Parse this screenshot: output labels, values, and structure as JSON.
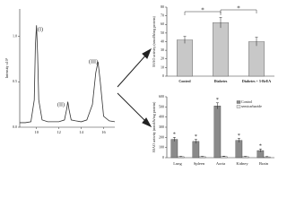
{
  "chart_data": [
    {
      "type": "line",
      "y_label": "Intensity x10⁵",
      "color": "#333333",
      "x": [
        8.5,
        9,
        9.5,
        9.8,
        9.9,
        10,
        10.1,
        10.2,
        10.5,
        11,
        11.5,
        12,
        12.5,
        12.7,
        12.8,
        12.9,
        13.1,
        13.5,
        14,
        14.5,
        15,
        15.3,
        15.5,
        15.7,
        16,
        16.5,
        17
      ],
      "values": [
        0.05,
        0.05,
        0.06,
        0.3,
        0.9,
        1.12,
        0.8,
        0.3,
        0.08,
        0.06,
        0.06,
        0.06,
        0.08,
        0.2,
        0.28,
        0.2,
        0.08,
        0.07,
        0.06,
        0.08,
        0.25,
        0.6,
        0.72,
        0.5,
        0.12,
        0.07,
        0.06
      ],
      "annotations": [
        "(I)",
        "(II)",
        "(III)"
      ],
      "xlim": [
        8.5,
        17
      ],
      "xticks": [
        10,
        12,
        14,
        16
      ],
      "ylim": [
        0,
        1.3
      ],
      "yticks": [
        {
          "value": 0,
          "label": "0.0"
        },
        {
          "value": 0.5,
          "label": "0.5"
        },
        {
          "value": 1,
          "label": "1.0"
        }
      ]
    },
    {
      "type": "bar",
      "y_label": "SSAO activity (nmol/h/mg protein)",
      "color": "#c8c8c8",
      "categories": [
        "Control",
        "Diabetes",
        "Diabetes + 3-BrEA"
      ],
      "values": [
        42,
        62,
        40
      ],
      "errors": [
        4,
        6,
        5
      ],
      "annotations": [
        "*",
        "*"
      ],
      "ylim": [
        0,
        80
      ],
      "yticks": [
        0,
        10,
        20,
        30,
        40,
        50,
        60,
        70,
        80
      ]
    },
    {
      "type": "grouped-bar",
      "y_label": "SSAO activity (nmol/h/mg protein)",
      "categories": [
        "Lung",
        "Spleen",
        "Aorta",
        "Kidney",
        "Brain"
      ],
      "series": [
        {
          "name": "Control",
          "color": "#8a8a8a",
          "values": [
            180,
            160,
            510,
            170,
            70
          ],
          "errors": [
            20,
            20,
            30,
            20,
            15
          ]
        },
        {
          "name": "semicarbazide",
          "color": "#e6e6e6",
          "values": [
            10,
            10,
            12,
            10,
            8
          ],
          "errors": [
            3,
            3,
            3,
            3,
            3
          ]
        }
      ],
      "annotations": [
        "*",
        "*",
        "*",
        "*",
        "*"
      ],
      "ylim": [
        0,
        600
      ],
      "yticks": [
        0,
        100,
        200,
        300,
        400,
        500,
        600
      ]
    }
  ]
}
